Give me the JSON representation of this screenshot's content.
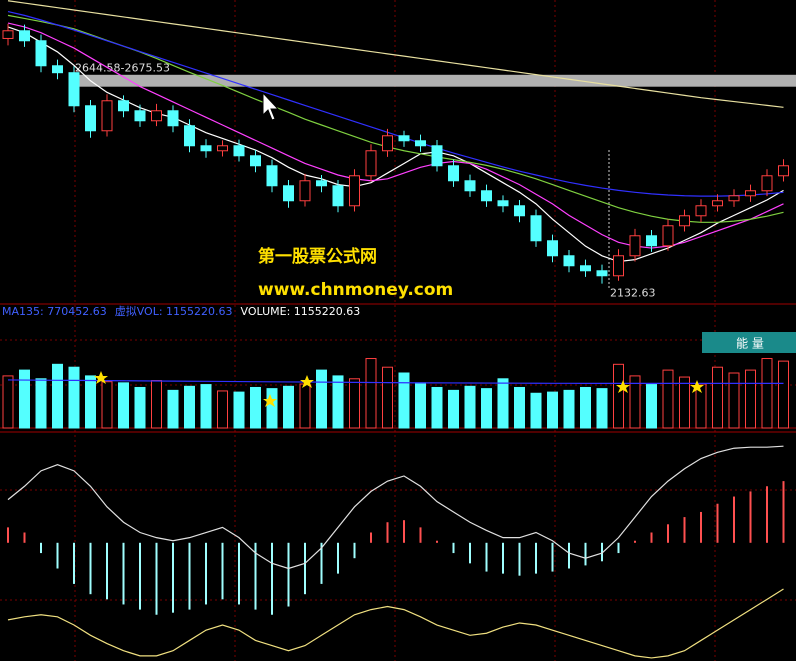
{
  "chart_data": [
    {
      "type": "candlestick",
      "open": [
        2770,
        2790,
        2764,
        2699,
        2681,
        2595,
        2530,
        2608,
        2582,
        2556,
        2582,
        2543,
        2491,
        2478,
        2491,
        2465,
        2439,
        2387,
        2348,
        2400,
        2387,
        2335,
        2413,
        2478,
        2517,
        2504,
        2491,
        2439,
        2400,
        2374,
        2348,
        2335,
        2309,
        2244,
        2205,
        2179,
        2166,
        2153,
        2205,
        2257,
        2231,
        2283,
        2309,
        2335,
        2348,
        2361,
        2374,
        2413
      ],
      "high": [
        2808,
        2806,
        2780,
        2715,
        2698,
        2610,
        2625,
        2622,
        2598,
        2600,
        2596,
        2560,
        2508,
        2505,
        2507,
        2480,
        2455,
        2402,
        2418,
        2415,
        2402,
        2430,
        2495,
        2535,
        2530,
        2520,
        2506,
        2455,
        2416,
        2390,
        2362,
        2350,
        2325,
        2260,
        2220,
        2195,
        2182,
        2222,
        2275,
        2272,
        2300,
        2325,
        2352,
        2365,
        2378,
        2390,
        2430,
        2456
      ],
      "low": [
        2752,
        2748,
        2682,
        2664,
        2578,
        2512,
        2515,
        2565,
        2540,
        2542,
        2526,
        2474,
        2460,
        2463,
        2450,
        2422,
        2370,
        2330,
        2333,
        2370,
        2318,
        2320,
        2398,
        2462,
        2488,
        2475,
        2424,
        2384,
        2358,
        2332,
        2318,
        2292,
        2228,
        2188,
        2162,
        2150,
        2132.63,
        2140,
        2190,
        2215,
        2218,
        2268,
        2292,
        2320,
        2332,
        2345,
        2360,
        2398
      ],
      "close": [
        2790,
        2764,
        2699,
        2681,
        2595,
        2530,
        2608,
        2582,
        2556,
        2582,
        2543,
        2491,
        2478,
        2491,
        2465,
        2439,
        2387,
        2348,
        2400,
        2387,
        2335,
        2413,
        2478,
        2517,
        2504,
        2491,
        2439,
        2400,
        2374,
        2348,
        2335,
        2309,
        2244,
        2205,
        2179,
        2166,
        2153,
        2205,
        2257,
        2231,
        2283,
        2309,
        2335,
        2348,
        2361,
        2374,
        2413,
        2439
      ],
      "up_color": "#ff4040",
      "down_color": "#54ffff",
      "series": [
        {
          "color": "#ffffff",
          "values": [
            2800,
            2785,
            2760,
            2735,
            2700,
            2660,
            2630,
            2610,
            2590,
            2575,
            2565,
            2545,
            2525,
            2510,
            2495,
            2480,
            2460,
            2435,
            2415,
            2405,
            2390,
            2385,
            2395,
            2420,
            2445,
            2470,
            2475,
            2465,
            2445,
            2420,
            2395,
            2370,
            2340,
            2300,
            2265,
            2230,
            2205,
            2190,
            2195,
            2210,
            2225,
            2245,
            2265,
            2290,
            2310,
            2330,
            2350,
            2375
          ]
        },
        {
          "color": "#ff40ff",
          "values": [
            2810,
            2800,
            2785,
            2765,
            2745,
            2720,
            2695,
            2670,
            2645,
            2625,
            2605,
            2585,
            2565,
            2545,
            2525,
            2505,
            2485,
            2465,
            2445,
            2430,
            2415,
            2405,
            2400,
            2405,
            2420,
            2435,
            2445,
            2450,
            2445,
            2430,
            2410,
            2390,
            2365,
            2340,
            2310,
            2285,
            2260,
            2240,
            2230,
            2225,
            2230,
            2240,
            2255,
            2270,
            2285,
            2300,
            2320,
            2340
          ]
        },
        {
          "color": "#7fd040",
          "values": [
            2830,
            2822,
            2814,
            2805,
            2795,
            2780,
            2765,
            2750,
            2735,
            2718,
            2700,
            2682,
            2665,
            2648,
            2630,
            2612,
            2595,
            2578,
            2560,
            2545,
            2530,
            2515,
            2500,
            2488,
            2478,
            2470,
            2462,
            2455,
            2448,
            2440,
            2430,
            2418,
            2405,
            2390,
            2375,
            2360,
            2345,
            2330,
            2318,
            2308,
            2300,
            2295,
            2292,
            2292,
            2295,
            2300,
            2308,
            2318
          ]
        },
        {
          "color": "#3030ff",
          "values": [
            2840,
            2830,
            2818,
            2805,
            2792,
            2778,
            2764,
            2750,
            2736,
            2722,
            2708,
            2694,
            2680,
            2666,
            2652,
            2638,
            2624,
            2610,
            2596,
            2582,
            2568,
            2554,
            2540,
            2526,
            2512,
            2498,
            2485,
            2472,
            2460,
            2448,
            2436,
            2425,
            2415,
            2405,
            2396,
            2388,
            2381,
            2375,
            2370,
            2366,
            2363,
            2361,
            2360,
            2360,
            2361,
            2363,
            2366,
            2370
          ]
        },
        {
          "color": "#e8e0a0",
          "values": [
            2868,
            2862,
            2856,
            2850,
            2844,
            2838,
            2832,
            2826,
            2820,
            2814,
            2808,
            2802,
            2796,
            2790,
            2784,
            2778,
            2772,
            2766,
            2760,
            2754,
            2748,
            2742,
            2736,
            2730,
            2724,
            2718,
            2712,
            2706,
            2700,
            2694,
            2688,
            2682,
            2676,
            2670,
            2664,
            2658,
            2652,
            2646,
            2640,
            2634,
            2628,
            2622,
            2616,
            2611,
            2606,
            2601,
            2596,
            2591
          ]
        }
      ],
      "ylim": [
        2090,
        2870
      ],
      "band": {
        "low": 2644.58,
        "high": 2675.53,
        "label": "2644.58-2675.53"
      },
      "low_annotation": "2132.63"
    },
    {
      "type": "bar",
      "header": [
        "MA135: 770452.63",
        "虚拟VOL: 1155220.63",
        "VOLUME: 1155220.63"
      ],
      "values": [
        900000,
        1000000,
        850000,
        1100000,
        1050000,
        900000,
        800000,
        780000,
        700000,
        820000,
        650000,
        720000,
        750000,
        640000,
        620000,
        700000,
        680000,
        720000,
        760000,
        1000000,
        900000,
        850000,
        1200000,
        1050000,
        950000,
        780000,
        700000,
        650000,
        720000,
        680000,
        850000,
        700000,
        600000,
        620000,
        650000,
        700000,
        680000,
        1100000,
        900000,
        750000,
        1000000,
        880000,
        760000,
        1050000,
        950000,
        1000000,
        1200000,
        1155220.63
      ],
      "series": [
        {
          "color": "#3030ff",
          "values": [
            830000,
            828000,
            826000,
            824000,
            822000,
            820000,
            818000,
            816000,
            814000,
            812000,
            810000,
            808000,
            806000,
            804000,
            802000,
            800000,
            798000,
            796000,
            794000,
            792000,
            790000,
            788000,
            786000,
            784000,
            782000,
            780000,
            779000,
            778000,
            777000,
            776000,
            775000,
            774000,
            773000,
            772000,
            771500,
            771000,
            770800,
            770600,
            770500,
            770480,
            770470,
            770460,
            770455,
            770453,
            770452.8,
            770452.7,
            770452.65,
            770452.63
          ]
        }
      ],
      "ylim": [
        0,
        1900000
      ]
    },
    {
      "type": "macd",
      "values": [
        0.15,
        0.1,
        -0.1,
        -0.25,
        -0.4,
        -0.5,
        -0.55,
        -0.6,
        -0.65,
        -0.7,
        -0.68,
        -0.65,
        -0.6,
        -0.55,
        -0.6,
        -0.65,
        -0.7,
        -0.62,
        -0.5,
        -0.4,
        -0.3,
        -0.15,
        0.1,
        0.2,
        0.22,
        0.15,
        0.02,
        -0.1,
        -0.2,
        -0.28,
        -0.3,
        -0.32,
        -0.3,
        -0.28,
        -0.25,
        -0.22,
        -0.18,
        -0.1,
        0.02,
        0.1,
        0.18,
        0.25,
        0.3,
        0.38,
        0.45,
        0.5,
        0.55,
        0.6
      ],
      "up_color": "#ff5050",
      "down_color": "#a0ffff",
      "series": [
        {
          "color": "#e0e0e0",
          "values": [
            0.42,
            0.55,
            0.7,
            0.76,
            0.7,
            0.55,
            0.35,
            0.2,
            0.1,
            0.05,
            0.02,
            0.05,
            0.1,
            0.15,
            0.05,
            -0.1,
            -0.2,
            -0.25,
            -0.2,
            -0.05,
            0.15,
            0.35,
            0.5,
            0.6,
            0.65,
            0.55,
            0.4,
            0.3,
            0.2,
            0.12,
            0.05,
            0.05,
            0.1,
            0.02,
            -0.1,
            -0.15,
            -0.1,
            0.05,
            0.25,
            0.45,
            0.6,
            0.72,
            0.82,
            0.88,
            0.92,
            0.93,
            0.93,
            0.94
          ]
        },
        {
          "color": "#f0e080",
          "values": [
            -0.75,
            -0.72,
            -0.7,
            -0.72,
            -0.8,
            -0.9,
            -0.98,
            -1.05,
            -1.1,
            -1.1,
            -1.05,
            -0.95,
            -0.85,
            -0.8,
            -0.85,
            -0.95,
            -1.0,
            -1.05,
            -1.0,
            -0.9,
            -0.8,
            -0.7,
            -0.65,
            -0.62,
            -0.65,
            -0.72,
            -0.8,
            -0.85,
            -0.9,
            -0.88,
            -0.82,
            -0.78,
            -0.8,
            -0.85,
            -0.9,
            -0.95,
            -1.0,
            -1.05,
            -1.1,
            -1.12,
            -1.1,
            -1.05,
            -0.95,
            -0.85,
            -0.75,
            -0.65,
            -0.55,
            -0.45
          ]
        }
      ],
      "ylim": [
        -1.15,
        1.0
      ]
    }
  ],
  "watermark": {
    "title": "第一股票公式网",
    "url": "www.chnmoney.com"
  },
  "button": "能 量"
}
